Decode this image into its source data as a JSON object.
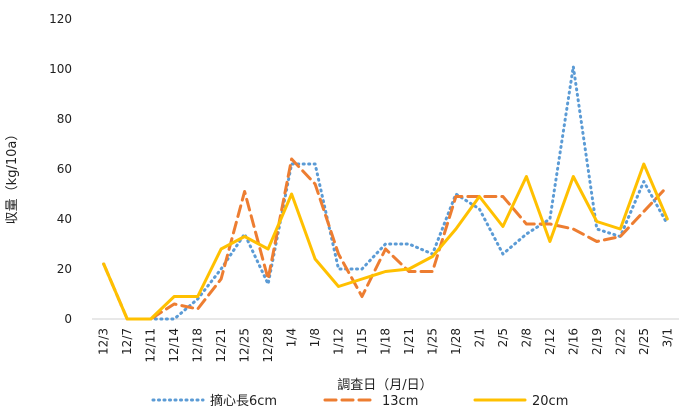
{
  "chart_data": {
    "type": "line",
    "title": "",
    "xlabel": "調査日（月/日）",
    "ylabel": "収量（kg/10a）",
    "ylim": [
      0,
      120
    ],
    "yticks": [
      0,
      20,
      40,
      60,
      80,
      100,
      120
    ],
    "grid": false,
    "legend_position": "bottom",
    "categories": [
      "12/3",
      "12/7",
      "12/11",
      "12/14",
      "12/18",
      "12/21",
      "12/25",
      "12/28",
      "1/4",
      "1/8",
      "1/12",
      "1/15",
      "1/18",
      "1/21",
      "1/25",
      "1/28",
      "2/1",
      "2/5",
      "2/8",
      "2/12",
      "2/16",
      "2/19",
      "2/22",
      "2/25",
      "3/1"
    ],
    "series": [
      {
        "name": "摘心長6cm",
        "color": "#5b9bd5",
        "style": "dotted",
        "values": [
          22,
          0,
          0,
          0,
          8,
          20,
          34,
          14,
          62,
          62,
          20,
          20,
          30,
          30,
          26,
          50,
          44,
          26,
          34,
          40,
          101,
          36,
          33,
          55,
          38
        ]
      },
      {
        "name": "13cm",
        "color": "#ed7d31",
        "style": "dashed",
        "values": [
          22,
          0,
          0,
          6,
          4,
          16,
          51,
          16,
          64,
          54,
          26,
          9,
          28,
          19,
          19,
          49,
          49,
          49,
          38,
          38,
          36,
          31,
          33,
          43,
          53
        ]
      },
      {
        "name": "20cm",
        "color": "#ffc000",
        "style": "solid",
        "values": [
          22,
          0,
          0,
          9,
          9,
          28,
          33,
          28,
          50,
          24,
          13,
          16,
          19,
          20,
          25,
          36,
          49,
          37,
          57,
          31,
          57,
          39,
          36,
          62,
          40
        ]
      }
    ]
  }
}
